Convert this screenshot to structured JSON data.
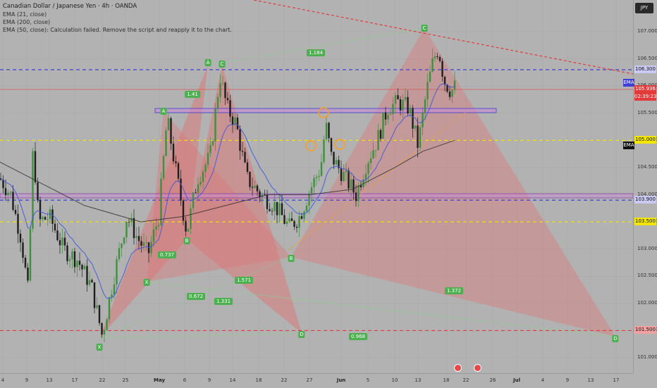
{
  "header": {
    "title": "Canadian Dollar / Japanese Yen · 4h · OANDA",
    "indicators": [
      "EMA (21, close)",
      "EMA (200, close)",
      "EMA (50, close): Calculation failed. Remove the script and reapply it to the chart."
    ]
  },
  "currency_button": "JPY",
  "chart_data": {
    "type": "candlestick",
    "instrument": "Canadian Dollar / Japanese Yen",
    "interval": "4h",
    "source": "OANDA",
    "ylim": [
      100.8,
      107.5
    ],
    "y_ticks": [
      101.0,
      101.5,
      102.0,
      102.5,
      103.0,
      103.5,
      104.0,
      104.5,
      105.0,
      105.5,
      106.0,
      106.5,
      107.0
    ],
    "x_ticks": [
      "4",
      "9",
      "13",
      "17",
      "22",
      "25",
      "May",
      "6",
      "9",
      "14",
      "18",
      "22",
      "27",
      "Jun",
      "5",
      "10",
      "13",
      "18",
      "22",
      "26",
      "Jul",
      "4",
      "9",
      "13",
      "17"
    ],
    "close_price": "105.936",
    "countdown": "02:39:23",
    "levels": [
      {
        "value": 106.3,
        "label": "106.300",
        "style": "dashed",
        "color": "#3f3fd6"
      },
      {
        "value": 105.0,
        "label": "105.000",
        "style": "dashed",
        "color": "#f2e600"
      },
      {
        "value": 103.9,
        "label": "103.900",
        "style": "dashed",
        "color": "#3f3fd6"
      },
      {
        "value": 103.5,
        "label": "103.500",
        "style": "dashed",
        "color": "#f2e600"
      },
      {
        "value": 101.5,
        "label": "101.500",
        "style": "dashed",
        "color": "#e23b3b"
      }
    ],
    "ema_tags": [
      "EMA",
      "EMA"
    ],
    "pattern_points": [
      {
        "label": "X",
        "x": "Apr 22",
        "y": 101.3
      },
      {
        "label": "A",
        "x": "Apr 30",
        "y": 105.5
      },
      {
        "label": "B",
        "x": "May 6",
        "y": 103.2
      },
      {
        "label": "A",
        "x": "May 9",
        "y": 106.4
      },
      {
        "label": "C",
        "x": "May 10",
        "y": 106.3
      },
      {
        "label": "X",
        "x": "Apr 30",
        "y": 102.5
      },
      {
        "label": "D",
        "x": "May 23",
        "y": 101.5
      },
      {
        "label": "B",
        "x": "May 25",
        "y": 102.8
      },
      {
        "label": "C",
        "x": "Jun 15",
        "y": 106.9
      },
      {
        "label": "D",
        "x": "Jul 17",
        "y": 101.4
      }
    ],
    "ratios": [
      "1.184",
      "1.41",
      "0.737",
      "1.571",
      "0.672",
      "1.331",
      "1.372",
      "0.968"
    ]
  },
  "colors": {
    "background": "#b2b2b2",
    "bull": "#3f8f3f",
    "bear": "#1e1e1e",
    "pattern_fill": "#d97a7a",
    "ema21": "#3e56d8",
    "ema200": "#2a2a2a",
    "label_green": "#4caf50"
  }
}
